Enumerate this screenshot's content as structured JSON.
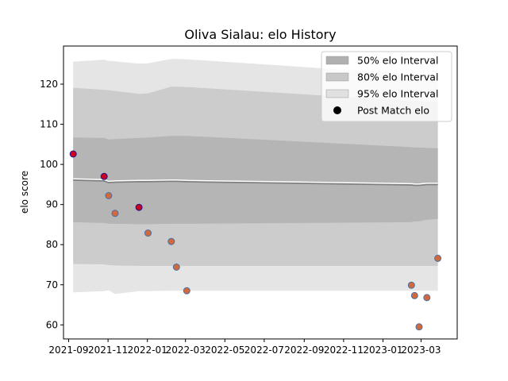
{
  "chart_data": {
    "type": "line",
    "title": "Oliva Sialau: elo History",
    "xlabel": "",
    "ylabel": "elo score",
    "xlim": [
      "2021-08-24",
      "2023-04-26"
    ],
    "ylim": [
      56.5,
      129.5
    ],
    "x_ticks": [
      "2021-09",
      "2021-11",
      "2022-01",
      "2022-03",
      "2022-05",
      "2022-07",
      "2022-09",
      "2022-11",
      "2023-01",
      "2023-03"
    ],
    "y_ticks": [
      60,
      70,
      80,
      90,
      100,
      110,
      120
    ],
    "grid": false,
    "legend_position": "top-right",
    "legend": [
      {
        "label": "50% elo Interval",
        "kind": "band",
        "color": "#b0b0b0"
      },
      {
        "label": "80% elo Interval",
        "kind": "band",
        "color": "#c8c8c8"
      },
      {
        "label": "95% elo Interval",
        "kind": "band",
        "color": "#e0e0e0"
      },
      {
        "label": "Post Match elo",
        "kind": "marker",
        "color": "#000000"
      }
    ],
    "x": [
      "2021-09-08",
      "2021-10-26",
      "2021-11-02",
      "2021-11-12",
      "2021-12-19",
      "2022-01-02",
      "2022-02-07",
      "2022-02-15",
      "2022-03-03",
      "2023-02-14",
      "2023-02-19",
      "2023-02-26",
      "2023-03-10",
      "2023-03-27"
    ],
    "mean": [
      96.2,
      96.0,
      95.6,
      95.7,
      95.8,
      95.8,
      95.9,
      95.9,
      95.8,
      95.0,
      94.9,
      94.9,
      95.1,
      95.1
    ],
    "band_50": {
      "lower": [
        85.6,
        85.4,
        85.2,
        85.2,
        85.1,
        85.1,
        85.2,
        85.2,
        85.2,
        85.6,
        85.8,
        85.8,
        86.2,
        86.4
      ],
      "upper": [
        106.7,
        106.6,
        106.2,
        106.3,
        106.6,
        106.7,
        107.1,
        107.1,
        107.1,
        104.3,
        104.2,
        104.2,
        104.1,
        104.0
      ]
    },
    "band_80": {
      "lower": [
        75.2,
        75.1,
        74.9,
        74.8,
        74.7,
        74.7,
        74.7,
        74.7,
        74.7,
        74.7,
        74.7,
        74.7,
        74.7,
        74.7
      ],
      "upper": [
        119.1,
        118.6,
        118.5,
        118.3,
        117.6,
        117.7,
        119.4,
        119.4,
        119.3,
        115.8,
        115.8,
        115.8,
        115.7,
        115.6
      ]
    },
    "band_95": {
      "lower": [
        68.1,
        68.4,
        68.6,
        67.7,
        68.4,
        68.4,
        68.5,
        68.5,
        68.5,
        68.5,
        68.5,
        68.5,
        68.5,
        68.5
      ],
      "upper": [
        125.6,
        126.1,
        125.8,
        125.7,
        125.1,
        125.2,
        126.3,
        126.3,
        126.2,
        122.5,
        122.4,
        122.4,
        122.3,
        122.2
      ]
    },
    "post_match": [
      {
        "x": "2021-09-08",
        "y": 102.6,
        "win": true
      },
      {
        "x": "2021-10-26",
        "y": 97.0,
        "win": true
      },
      {
        "x": "2021-11-02",
        "y": 92.2,
        "win": false
      },
      {
        "x": "2021-11-12",
        "y": 87.8,
        "win": false
      },
      {
        "x": "2021-12-19",
        "y": 89.3,
        "win": true
      },
      {
        "x": "2022-01-02",
        "y": 82.9,
        "win": false
      },
      {
        "x": "2022-02-07",
        "y": 80.8,
        "win": false
      },
      {
        "x": "2022-02-15",
        "y": 74.4,
        "win": false
      },
      {
        "x": "2022-03-03",
        "y": 68.5,
        "win": false
      },
      {
        "x": "2023-02-14",
        "y": 69.9,
        "win": false
      },
      {
        "x": "2023-02-19",
        "y": 67.3,
        "win": false
      },
      {
        "x": "2023-02-26",
        "y": 59.5,
        "win": false
      },
      {
        "x": "2023-03-10",
        "y": 66.8,
        "win": false
      },
      {
        "x": "2023-03-27",
        "y": 76.6,
        "win": false
      }
    ],
    "colors": {
      "band_95": "#e0e0e0",
      "band_80": "#c8c8c8",
      "band_50": "#b0b0b0",
      "mean_line": "#ffffff",
      "mean_shadow": "#808080",
      "marker_edge": "#4a6fa5",
      "marker_win_fill": "#cc0022",
      "marker_win_edge": "#1a1a8c",
      "marker_loss_fill": "#d2693c"
    }
  }
}
